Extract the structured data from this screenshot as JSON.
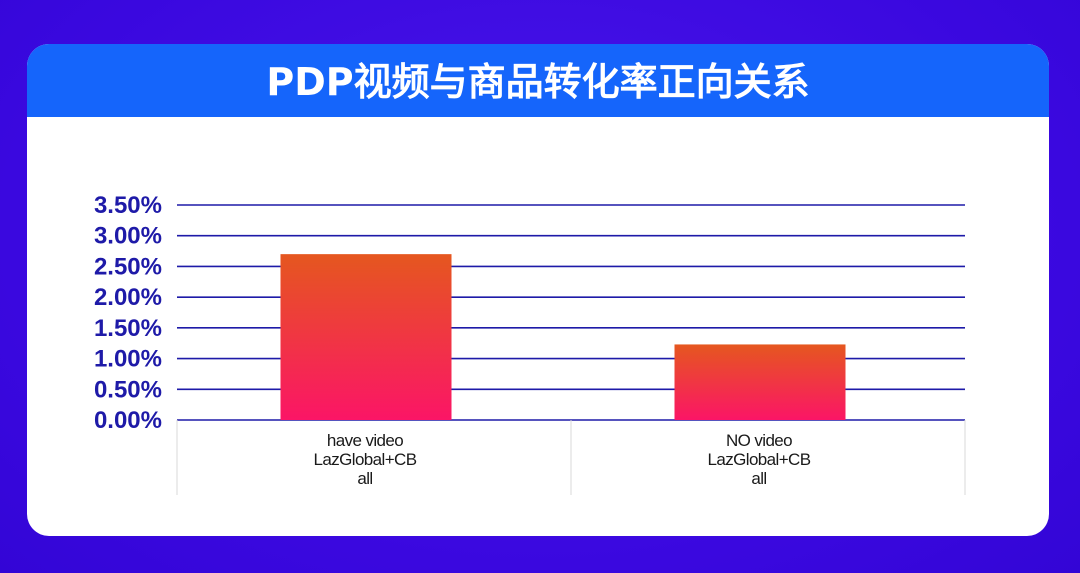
{
  "header": {
    "title": "PDP视频与商品转化率正向关系"
  },
  "colors": {
    "background": "#3d0ae2",
    "header": "#1565fb",
    "gridline": "#1e1aa8",
    "bar_top": "#e5571f",
    "bar_bottom": "#fb1566"
  },
  "chart_data": {
    "type": "bar",
    "title": "PDP视频与商品转化率正向关系",
    "categories": [
      [
        "have video",
        "LazGlobal+CB",
        "all"
      ],
      [
        "NO video",
        "LazGlobal+CB",
        "all"
      ]
    ],
    "values": [
      2.7,
      1.23
    ],
    "ylim": [
      0,
      3.5
    ],
    "yticks": [
      "0.00%",
      "0.50%",
      "1.00%",
      "1.50%",
      "2.00%",
      "2.50%",
      "3.00%",
      "3.50%"
    ],
    "ytick_values": [
      0,
      0.5,
      1.0,
      1.5,
      2.0,
      2.5,
      3.0,
      3.5
    ],
    "grid": true,
    "legend": false
  }
}
